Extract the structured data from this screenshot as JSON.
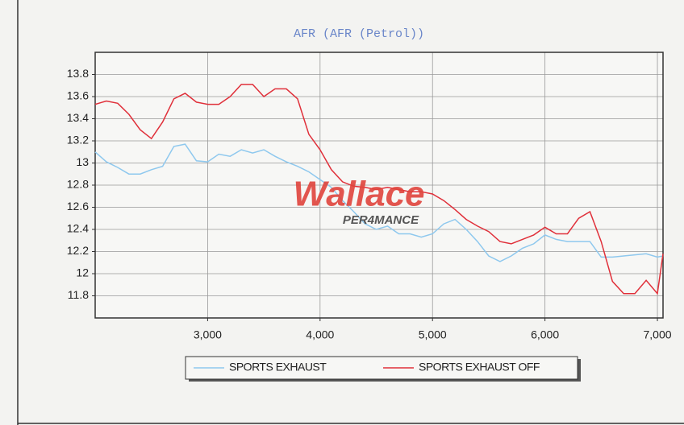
{
  "chart_data": {
    "type": "line",
    "title": "AFR (AFR (Petrol))",
    "annotations": [
      "Wallace",
      "PER4MANCE"
    ],
    "x": [
      2000,
      2100,
      2200,
      2300,
      2400,
      2500,
      2600,
      2700,
      2800,
      2900,
      3000,
      3100,
      3200,
      3300,
      3400,
      3500,
      3600,
      3700,
      3800,
      3900,
      4000,
      4100,
      4200,
      4300,
      4400,
      4500,
      4600,
      4700,
      4800,
      4900,
      5000,
      5100,
      5200,
      5300,
      5400,
      5500,
      5600,
      5700,
      5800,
      5900,
      6000,
      6100,
      6200,
      6300,
      6400,
      6500,
      6600,
      6700,
      6800,
      6900,
      7000,
      7050
    ],
    "series": [
      {
        "name": "SPORTS EXHAUST",
        "color": "#8ec8ee",
        "values": [
          13.1,
          13.01,
          12.96,
          12.9,
          12.9,
          12.94,
          12.97,
          13.15,
          13.17,
          13.02,
          13.01,
          13.08,
          13.06,
          13.12,
          13.09,
          13.12,
          13.06,
          13.01,
          12.97,
          12.92,
          12.85,
          12.78,
          12.66,
          12.56,
          12.45,
          12.4,
          12.43,
          12.36,
          12.36,
          12.33,
          12.36,
          12.45,
          12.49,
          12.4,
          12.29,
          12.16,
          12.11,
          12.16,
          12.23,
          12.27,
          12.35,
          12.31,
          12.29,
          12.29,
          12.29,
          12.15,
          12.15,
          12.16,
          12.17,
          12.18,
          12.15,
          12.16
        ]
      },
      {
        "name": "SPORTS EXHAUST OFF",
        "color": "#e0303a",
        "values": [
          13.53,
          13.56,
          13.54,
          13.44,
          13.3,
          13.22,
          13.37,
          13.58,
          13.63,
          13.55,
          13.53,
          13.53,
          13.6,
          13.71,
          13.71,
          13.6,
          13.67,
          13.67,
          13.58,
          13.26,
          13.12,
          12.94,
          12.83,
          12.79,
          12.78,
          12.76,
          12.78,
          12.76,
          12.74,
          12.74,
          12.72,
          12.66,
          12.58,
          12.49,
          12.43,
          12.38,
          12.29,
          12.27,
          12.31,
          12.35,
          12.42,
          12.36,
          12.36,
          12.5,
          12.56,
          12.29,
          11.93,
          11.82,
          11.82,
          11.94,
          11.82,
          12.18
        ]
      }
    ],
    "xlim": [
      2000,
      7050
    ],
    "ylim": [
      11.6,
      14.0
    ],
    "xticks": [
      {
        "value": 3000,
        "label": "3,000"
      },
      {
        "value": 4000,
        "label": "4,000"
      },
      {
        "value": 5000,
        "label": "5,000"
      },
      {
        "value": 6000,
        "label": "6,000"
      },
      {
        "value": 7000,
        "label": "7,000"
      }
    ],
    "yticks": [
      11.8,
      12,
      12.2,
      12.4,
      12.6,
      12.8,
      13,
      13.2,
      13.4,
      13.6,
      13.8
    ],
    "grid": true,
    "legend": "bottom"
  }
}
